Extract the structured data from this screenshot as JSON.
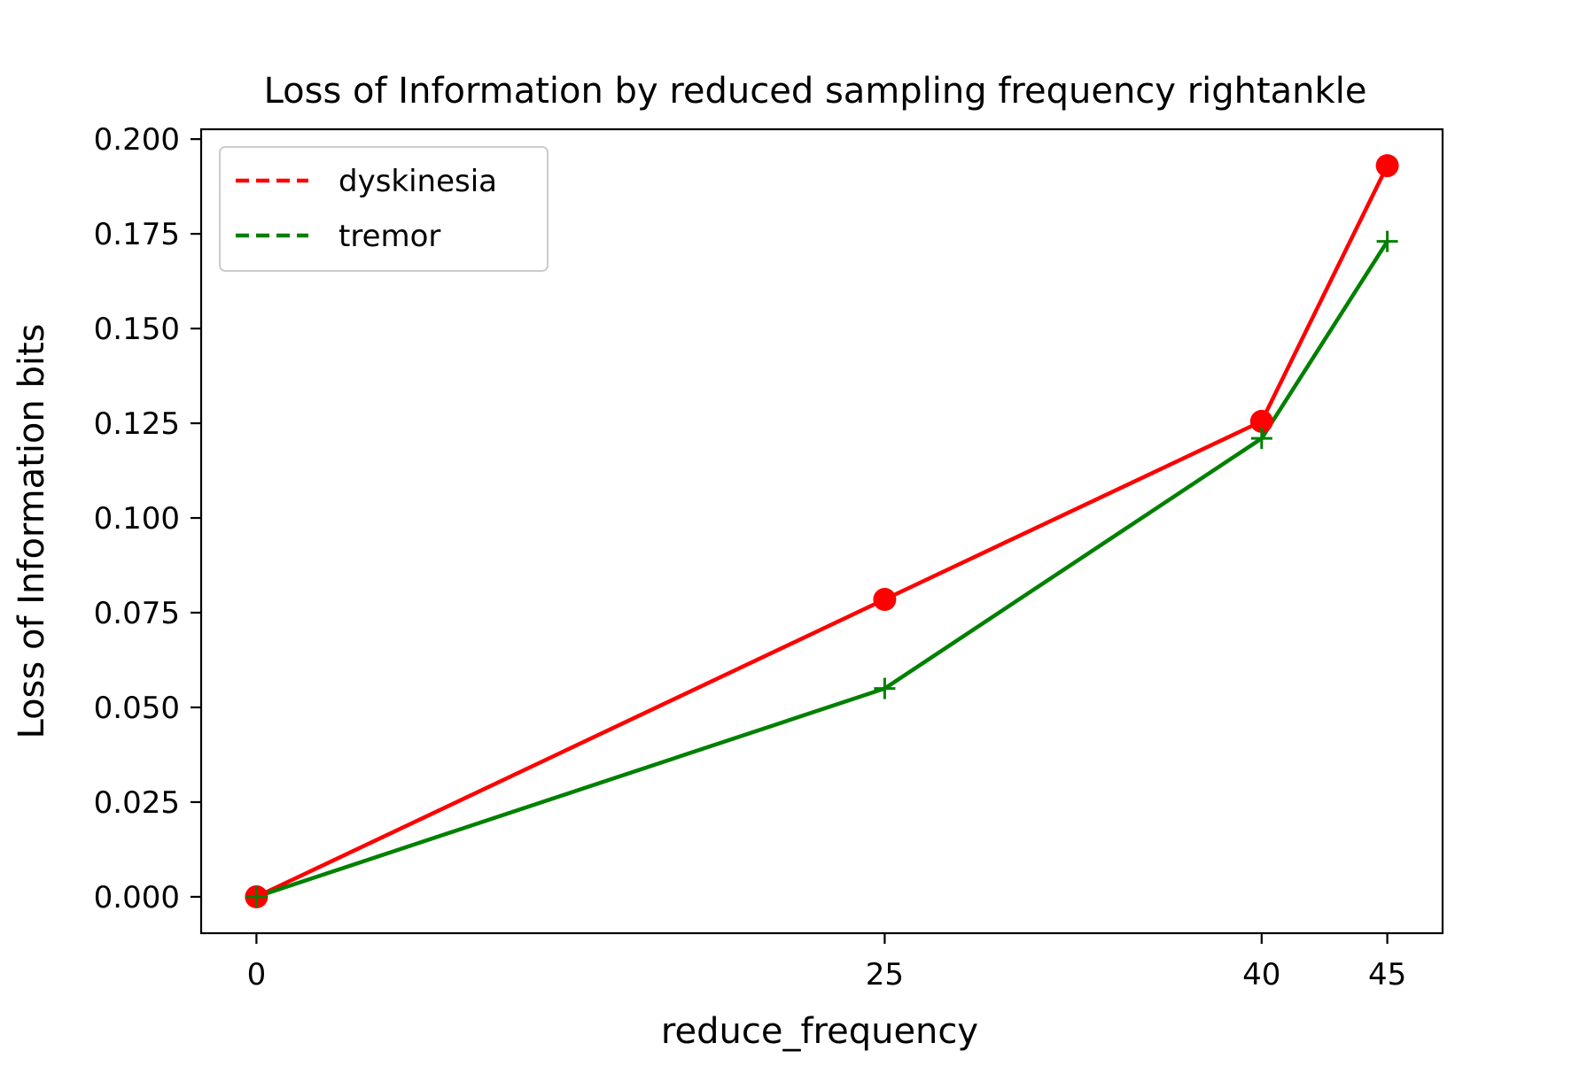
{
  "chart_data": {
    "type": "line",
    "title": "Loss of Information by reduced sampling frequency rightankle",
    "xlabel": "reduce_frequency",
    "ylabel": "Loss of Information bits",
    "x": [
      0,
      25,
      40,
      45
    ],
    "x_ticks": [
      0,
      25,
      40,
      45
    ],
    "y_ticks": [
      0.0,
      0.025,
      0.05,
      0.075,
      0.1,
      0.125,
      0.15,
      0.175,
      0.2
    ],
    "y_tick_labels": [
      "0.000",
      "0.025",
      "0.050",
      "0.075",
      "0.100",
      "0.125",
      "0.150",
      "0.175",
      "0.200"
    ],
    "xlim": [
      -2.2,
      47.2
    ],
    "ylim": [
      -0.0096,
      0.2026
    ],
    "grid": false,
    "legend_position": "top-left",
    "series": [
      {
        "name": "dyskinesia",
        "values": [
          0.0,
          0.0785,
          0.1255,
          0.193
        ],
        "color": "#ff0000",
        "marker": "circle",
        "legend_line": "dashed"
      },
      {
        "name": "tremor",
        "values": [
          0.0,
          0.055,
          0.121,
          0.173
        ],
        "color": "#008000",
        "marker": "plus",
        "legend_line": "dashed"
      }
    ]
  }
}
